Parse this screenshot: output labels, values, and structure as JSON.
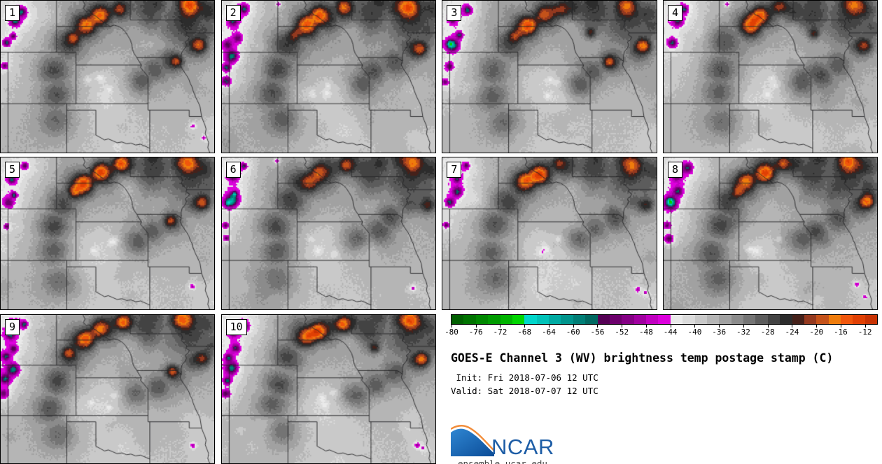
{
  "figure": {
    "title": "GOES-E Channel 3 (WV) brightness temp postage stamp (C)",
    "init_line": " Init: Fri 2018-07-06 12 UTC",
    "valid_line": "Valid: Sat 2018-07-07 12 UTC",
    "url": "ensemble.ucar.edu",
    "logo_text": "NCAR"
  },
  "panels": [
    {
      "member": "1",
      "west_cloud": "medium"
    },
    {
      "member": "2",
      "west_cloud": "large"
    },
    {
      "member": "3",
      "west_cloud": "large"
    },
    {
      "member": "4",
      "west_cloud": "small"
    },
    {
      "member": "5",
      "west_cloud": "medium"
    },
    {
      "member": "6",
      "west_cloud": "large"
    },
    {
      "member": "7",
      "west_cloud": "medium"
    },
    {
      "member": "8",
      "west_cloud": "large"
    },
    {
      "member": "9",
      "west_cloud": "large"
    },
    {
      "member": "10",
      "west_cloud": "large"
    }
  ],
  "colorbar": {
    "units": "C",
    "min": -80,
    "max": -10,
    "cell_step": 2,
    "tick_step": 4,
    "tick_labels": [
      "-80",
      "-76",
      "-72",
      "-68",
      "-64",
      "-60",
      "-56",
      "-52",
      "-48",
      "-44",
      "-40",
      "-36",
      "-32",
      "-28",
      "-24",
      "-20",
      "-16",
      "-12"
    ],
    "colors": [
      "#005f00",
      "#007300",
      "#008700",
      "#009b00",
      "#00b300",
      "#00d500",
      "#00d6ca",
      "#00c2b8",
      "#00aaa2",
      "#00948c",
      "#007e76",
      "#006860",
      "#540054",
      "#6c006c",
      "#840084",
      "#a000a0",
      "#c000c0",
      "#dc00dc",
      "#eaeaea",
      "#dbdbdb",
      "#c9c9c9",
      "#b5b5b5",
      "#a1a1a1",
      "#8b8b8b",
      "#747474",
      "#5c5c5c",
      "#434343",
      "#2c2c2c",
      "#45211a",
      "#94391f",
      "#c4521a",
      "#ef7c0c",
      "#f0560c",
      "#e04004",
      "#c83203"
    ]
  }
}
